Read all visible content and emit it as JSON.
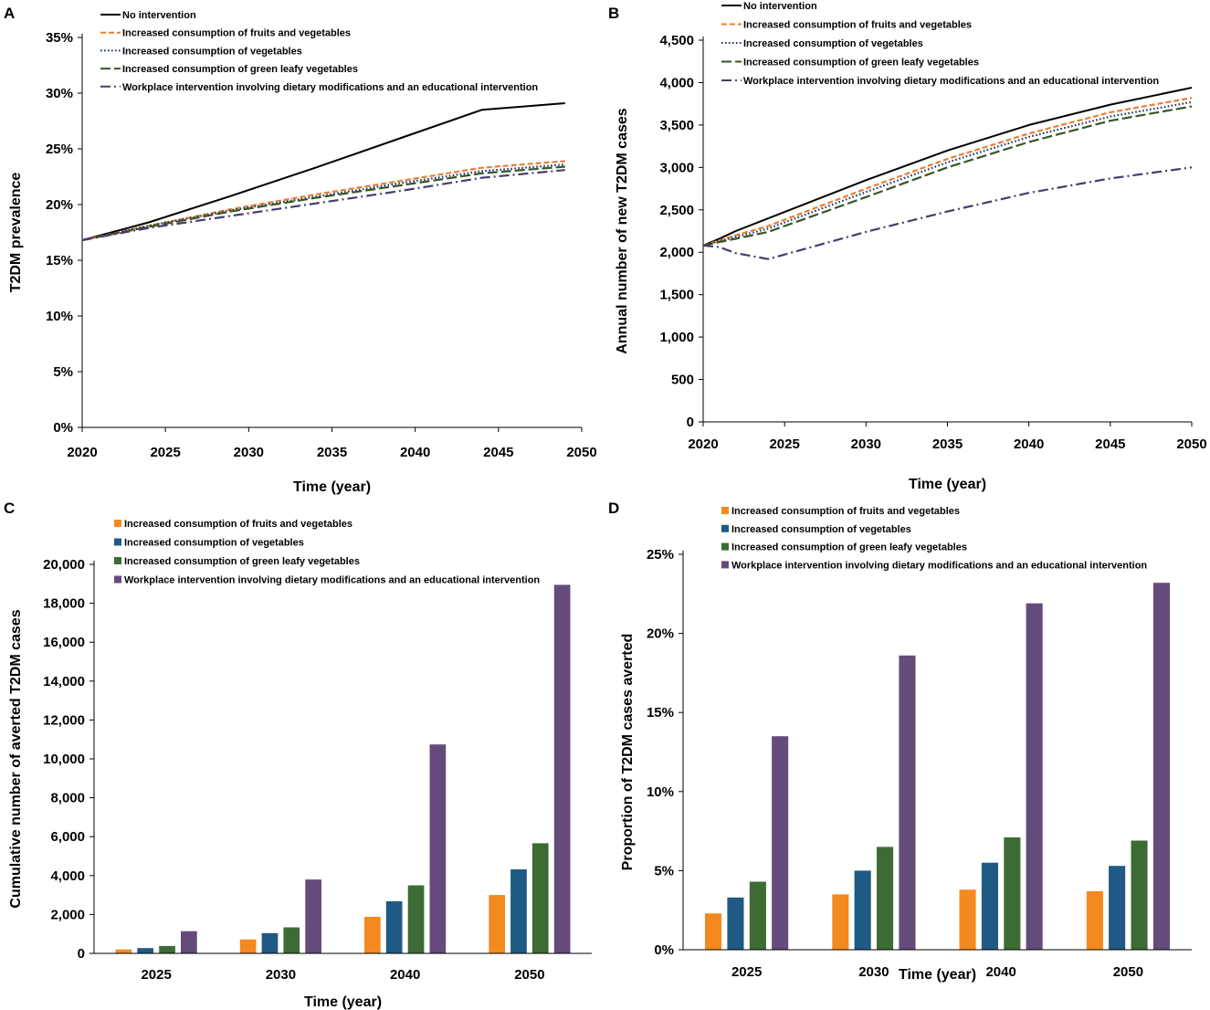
{
  "panels": {
    "A": {
      "letter": "A",
      "type": "line",
      "xlabel": "Time (year)",
      "ylabel": "T2DM prevalence",
      "xlim": [
        2020,
        2050
      ],
      "ylim": [
        0,
        35
      ],
      "xticks": [
        "2020",
        "2025",
        "2030",
        "2035",
        "2040",
        "2045",
        "2050"
      ],
      "yticks": [
        "0%",
        "5%",
        "10%",
        "15%",
        "20%",
        "25%",
        "30%",
        "35%"
      ],
      "legend": "top-left",
      "x": [
        2020,
        2024,
        2029,
        2034,
        2039,
        2044,
        2049
      ],
      "series": [
        {
          "name": "No intervention",
          "color": "#000000",
          "style": "solid",
          "values": [
            16.8,
            18.4,
            20.8,
            23.3,
            25.9,
            28.5,
            29.1
          ]
        },
        {
          "name": "Increased consumption of fruits and vegetables",
          "color": "#ED7D31",
          "style": "dashed",
          "values": [
            16.8,
            18.1,
            19.6,
            20.9,
            22.1,
            23.3,
            23.9
          ]
        },
        {
          "name": "Increased consumption of vegetables",
          "color": "#1F3864",
          "style": "dotted",
          "values": [
            16.8,
            18.1,
            19.5,
            20.7,
            21.9,
            23.0,
            23.6
          ]
        },
        {
          "name": "Increased consumption of green leafy vegetables",
          "color": "#375623",
          "style": "longdash",
          "values": [
            16.8,
            18.0,
            19.4,
            20.6,
            21.7,
            22.8,
            23.4
          ]
        },
        {
          "name": "Workplace intervention involving dietary modifications and an educational intervention",
          "color": "#4B3A6B",
          "style": "dashdot",
          "values": [
            16.8,
            17.9,
            19.0,
            20.1,
            21.2,
            22.4,
            23.1
          ]
        }
      ]
    },
    "B": {
      "letter": "B",
      "type": "line",
      "xlabel": "Time (year)",
      "ylabel": "Annual number of new T2DM cases",
      "xlim": [
        2020,
        2050
      ],
      "ylim": [
        0,
        4500
      ],
      "xticks": [
        "2020",
        "2025",
        "2030",
        "2035",
        "2040",
        "2045",
        "2050"
      ],
      "yticks": [
        "0",
        "500",
        "1,000",
        "1,500",
        "2,000",
        "2,500",
        "3,000",
        "3,500",
        "4,000",
        "4,500"
      ],
      "legend": "top-left",
      "x": [
        2020,
        2021,
        2022,
        2024,
        2030,
        2035,
        2040,
        2045,
        2050
      ],
      "series": [
        {
          "name": "No intervention",
          "color": "#000000",
          "style": "solid",
          "values": [
            2080,
            2160,
            2250,
            2400,
            2850,
            3200,
            3500,
            3740,
            3940
          ]
        },
        {
          "name": "Increased consumption of fruits and vegetables",
          "color": "#ED7D31",
          "style": "dashed",
          "values": [
            2080,
            2140,
            2200,
            2310,
            2750,
            3100,
            3400,
            3650,
            3820
          ]
        },
        {
          "name": "Increased consumption of vegetables",
          "color": "#1F3864",
          "style": "dotted",
          "values": [
            2080,
            2130,
            2180,
            2280,
            2710,
            3060,
            3360,
            3600,
            3770
          ]
        },
        {
          "name": "Increased consumption of green leafy vegetables",
          "color": "#375623",
          "style": "longdash",
          "values": [
            2080,
            2120,
            2160,
            2240,
            2650,
            3000,
            3300,
            3550,
            3720
          ]
        },
        {
          "name": "Workplace intervention involving dietary modifications and an educational intervention",
          "color": "#4B3A6B",
          "style": "dashdot",
          "values": [
            2080,
            2060,
            1990,
            1920,
            2240,
            2480,
            2700,
            2870,
            3000
          ]
        }
      ]
    },
    "C": {
      "letter": "C",
      "type": "bar",
      "xlabel": "Time (year)",
      "ylabel": "Cumulative number of averted T2DM cases",
      "categories": [
        "2025",
        "2030",
        "2040",
        "2050"
      ],
      "ylim": [
        0,
        20000
      ],
      "yticks": [
        "0",
        "2,000",
        "4,000",
        "6,000",
        "8,000",
        "10,000",
        "12,000",
        "14,000",
        "16,000",
        "18,000",
        "20,000"
      ],
      "legend": "top-left",
      "series": [
        {
          "name": "Increased consumption of fruits and vegetables",
          "color": "#F4891F",
          "values": [
            200,
            720,
            1880,
            3000
          ]
        },
        {
          "name": "Increased consumption of vegetables",
          "color": "#1F5A84",
          "values": [
            270,
            1040,
            2680,
            4320
          ]
        },
        {
          "name": "Increased consumption of green leafy vegetables",
          "color": "#3D6B34",
          "values": [
            380,
            1340,
            3500,
            5660
          ]
        },
        {
          "name": "Workplace intervention involving dietary modifications and an educational intervention",
          "color": "#654B7C",
          "values": [
            1140,
            3800,
            10740,
            18950
          ]
        }
      ]
    },
    "D": {
      "letter": "D",
      "type": "bar",
      "xlabel": "Time (year)",
      "ylabel": "Proportion of T2DM cases averted",
      "categories": [
        "2025",
        "2030",
        "2040",
        "2050"
      ],
      "ylim": [
        0,
        25
      ],
      "yticks": [
        "0%",
        "5%",
        "10%",
        "15%",
        "20%",
        "25%"
      ],
      "legend": "top-left",
      "series": [
        {
          "name": "Increased consumption of fruits and vegetables",
          "color": "#F4891F",
          "values": [
            2.3,
            3.5,
            3.8,
            3.7
          ]
        },
        {
          "name": "Increased consumption of vegetables",
          "color": "#1F5A84",
          "values": [
            3.3,
            5.0,
            5.5,
            5.3
          ]
        },
        {
          "name": "Increased consumption of green leafy vegetables",
          "color": "#3D6B34",
          "values": [
            4.3,
            6.5,
            7.1,
            6.9
          ]
        },
        {
          "name": "Workplace intervention involving dietary modifications and an educational intervention",
          "color": "#654B7C",
          "values": [
            13.5,
            18.6,
            21.9,
            23.2
          ]
        }
      ]
    }
  },
  "chart_data": [
    {
      "type": "line",
      "title": "A",
      "xlabel": "Time (year)",
      "ylabel": "T2DM prevalence",
      "xlim": [
        2020,
        2050
      ],
      "ylim": [
        0,
        35
      ],
      "x": [
        2020,
        2024,
        2029,
        2034,
        2039,
        2044,
        2049
      ],
      "series": [
        {
          "name": "No intervention",
          "values": [
            16.8,
            18.4,
            20.8,
            23.3,
            25.9,
            28.5,
            29.1
          ]
        },
        {
          "name": "Increased consumption of fruits and vegetables",
          "values": [
            16.8,
            18.1,
            19.6,
            20.9,
            22.1,
            23.3,
            23.9
          ]
        },
        {
          "name": "Increased consumption of vegetables",
          "values": [
            16.8,
            18.1,
            19.5,
            20.7,
            21.9,
            23.0,
            23.6
          ]
        },
        {
          "name": "Increased consumption of green leafy vegetables",
          "values": [
            16.8,
            18.0,
            19.4,
            20.6,
            21.7,
            22.8,
            23.4
          ]
        },
        {
          "name": "Workplace intervention involving dietary modifications and an educational intervention",
          "values": [
            16.8,
            17.9,
            19.0,
            20.1,
            21.2,
            22.4,
            23.1
          ]
        }
      ]
    },
    {
      "type": "line",
      "title": "B",
      "xlabel": "Time (year)",
      "ylabel": "Annual number of new T2DM cases",
      "xlim": [
        2020,
        2050
      ],
      "ylim": [
        0,
        4500
      ],
      "x": [
        2020,
        2021,
        2022,
        2024,
        2030,
        2035,
        2040,
        2045,
        2050
      ],
      "series": [
        {
          "name": "No intervention",
          "values": [
            2080,
            2160,
            2250,
            2400,
            2850,
            3200,
            3500,
            3740,
            3940
          ]
        },
        {
          "name": "Increased consumption of fruits and vegetables",
          "values": [
            2080,
            2140,
            2200,
            2310,
            2750,
            3100,
            3400,
            3650,
            3820
          ]
        },
        {
          "name": "Increased consumption of vegetables",
          "values": [
            2080,
            2130,
            2180,
            2280,
            2710,
            3060,
            3360,
            3600,
            3770
          ]
        },
        {
          "name": "Increased consumption of green leafy vegetables",
          "values": [
            2080,
            2120,
            2160,
            2240,
            2650,
            3000,
            3300,
            3550,
            3720
          ]
        },
        {
          "name": "Workplace intervention involving dietary modifications and an educational intervention",
          "values": [
            2080,
            2060,
            1990,
            1920,
            2240,
            2480,
            2700,
            2870,
            3000
          ]
        }
      ]
    },
    {
      "type": "bar",
      "title": "C",
      "xlabel": "Time (year)",
      "ylabel": "Cumulative number of averted T2DM cases",
      "categories": [
        "2025",
        "2030",
        "2040",
        "2050"
      ],
      "ylim": [
        0,
        20000
      ],
      "series": [
        {
          "name": "Increased consumption of fruits and vegetables",
          "values": [
            200,
            720,
            1880,
            3000
          ]
        },
        {
          "name": "Increased consumption of vegetables",
          "values": [
            270,
            1040,
            2680,
            4320
          ]
        },
        {
          "name": "Increased consumption of green leafy vegetables",
          "values": [
            380,
            1340,
            3500,
            5660
          ]
        },
        {
          "name": "Workplace intervention involving dietary modifications and an educational intervention",
          "values": [
            1140,
            3800,
            10740,
            18950
          ]
        }
      ]
    },
    {
      "type": "bar",
      "title": "D",
      "xlabel": "Time (year)",
      "ylabel": "Proportion of T2DM cases averted",
      "categories": [
        "2025",
        "2030",
        "2040",
        "2050"
      ],
      "ylim": [
        0,
        25
      ],
      "series": [
        {
          "name": "Increased consumption of fruits and vegetables",
          "values": [
            2.3,
            3.5,
            3.8,
            3.7
          ]
        },
        {
          "name": "Increased consumption of vegetables",
          "values": [
            3.3,
            5.0,
            5.5,
            5.3
          ]
        },
        {
          "name": "Increased consumption of green leafy vegetables",
          "values": [
            4.3,
            6.5,
            7.1,
            6.9
          ]
        },
        {
          "name": "Workplace intervention involving dietary modifications and an educational intervention",
          "values": [
            13.5,
            18.6,
            21.9,
            23.2
          ]
        }
      ]
    }
  ]
}
